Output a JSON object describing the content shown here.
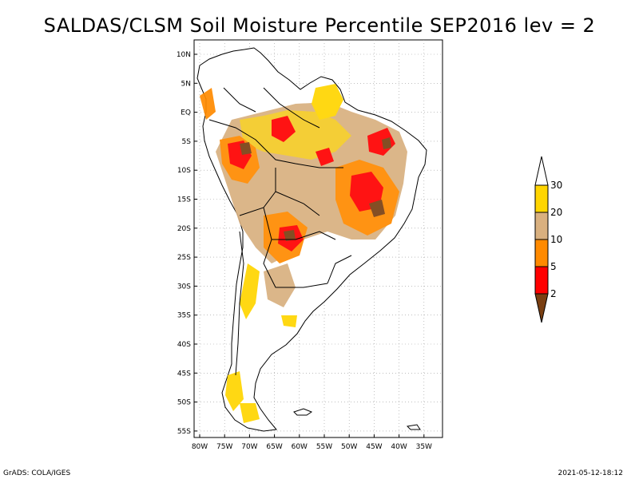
{
  "title": "SALDAS/CLSM Soil Moisture Percentile SEP2016 lev = 2",
  "footer_left": "GrADS: COLA/IGES",
  "footer_right": "2021-05-12-18:12",
  "map": {
    "region": "South America",
    "lat_labels": [
      "10N",
      "5N",
      "EQ",
      "5S",
      "10S",
      "15S",
      "20S",
      "25S",
      "30S",
      "35S",
      "40S",
      "45S",
      "50S",
      "55S"
    ],
    "lon_labels": [
      "80W",
      "75W",
      "70W",
      "65W",
      "60W",
      "55W",
      "50W",
      "45W",
      "40W",
      "35W"
    ],
    "lon_range": [
      -81,
      -32
    ],
    "lat_range": [
      -56,
      12
    ]
  },
  "colorbar": {
    "labels": [
      "2",
      "5",
      "10",
      "20",
      "30"
    ],
    "bins": [
      {
        "range": "<2",
        "color": "#7a3f12"
      },
      {
        "range": "2-5",
        "color": "#ff0000"
      },
      {
        "range": "5-10",
        "color": "#ff8a00"
      },
      {
        "range": "10-20",
        "color": "#d9b07f"
      },
      {
        "range": "20-30",
        "color": "#ffd500"
      },
      {
        "range": ">30",
        "color": "#ffffff"
      }
    ]
  }
}
